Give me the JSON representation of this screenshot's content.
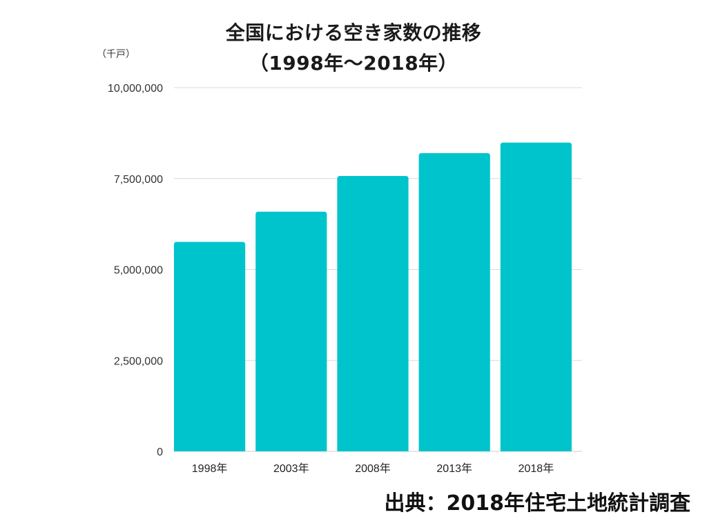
{
  "title_line1": "全国における空き家数の推移",
  "title_line2": "（1998年〜2018年）",
  "unit": "（千戸）",
  "source": "出典：2018年住宅土地統計調査",
  "chart_data": {
    "type": "bar",
    "categories": [
      "1998年",
      "2003年",
      "2008年",
      "2013年",
      "2018年"
    ],
    "values": [
      5760000,
      6590000,
      7570000,
      8200000,
      8490000
    ],
    "ylim": [
      0,
      10000000
    ],
    "yticks": [
      0,
      2500000,
      5000000,
      7500000,
      10000000
    ],
    "ytick_labels": [
      "0",
      "2,500,000",
      "5,000,000",
      "7,500,000",
      "10,000,000"
    ],
    "bar_color": "#00c4cc",
    "grid": true,
    "grid_color": "#d9d9d9",
    "legend": "none"
  }
}
